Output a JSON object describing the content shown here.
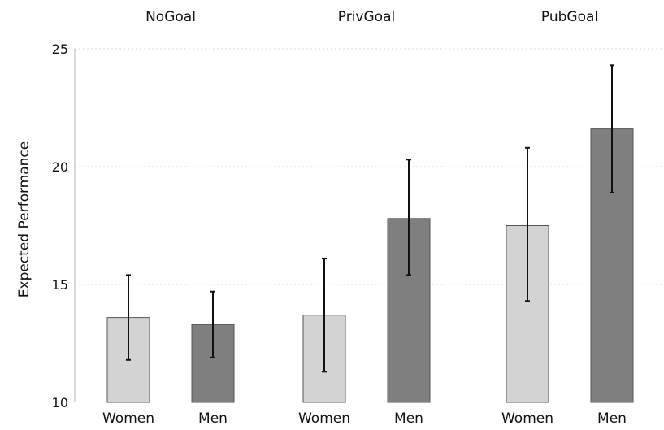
{
  "chart_data": {
    "type": "bar",
    "ylabel": "Expected Performance",
    "ylim": [
      10,
      25
    ],
    "yticks": [
      10,
      15,
      20,
      25
    ],
    "grid": true,
    "colors": {
      "Women": "#d3d3d3",
      "Men": "#7f7f7f",
      "bar_edge": "#555555"
    },
    "panels": [
      {
        "title": "NoGoal",
        "categories": [
          "Women",
          "Men"
        ],
        "values": [
          13.6,
          13.3
        ],
        "error_low": [
          11.8,
          11.9
        ],
        "error_high": [
          15.4,
          14.7
        ]
      },
      {
        "title": "PrivGoal",
        "categories": [
          "Women",
          "Men"
        ],
        "values": [
          13.7,
          17.8
        ],
        "error_low": [
          11.3,
          15.4
        ],
        "error_high": [
          16.1,
          20.3
        ]
      },
      {
        "title": "PubGoal",
        "categories": [
          "Women",
          "Men"
        ],
        "values": [
          17.5,
          21.6
        ],
        "error_low": [
          14.3,
          18.9
        ],
        "error_high": [
          20.8,
          24.3
        ]
      }
    ]
  }
}
